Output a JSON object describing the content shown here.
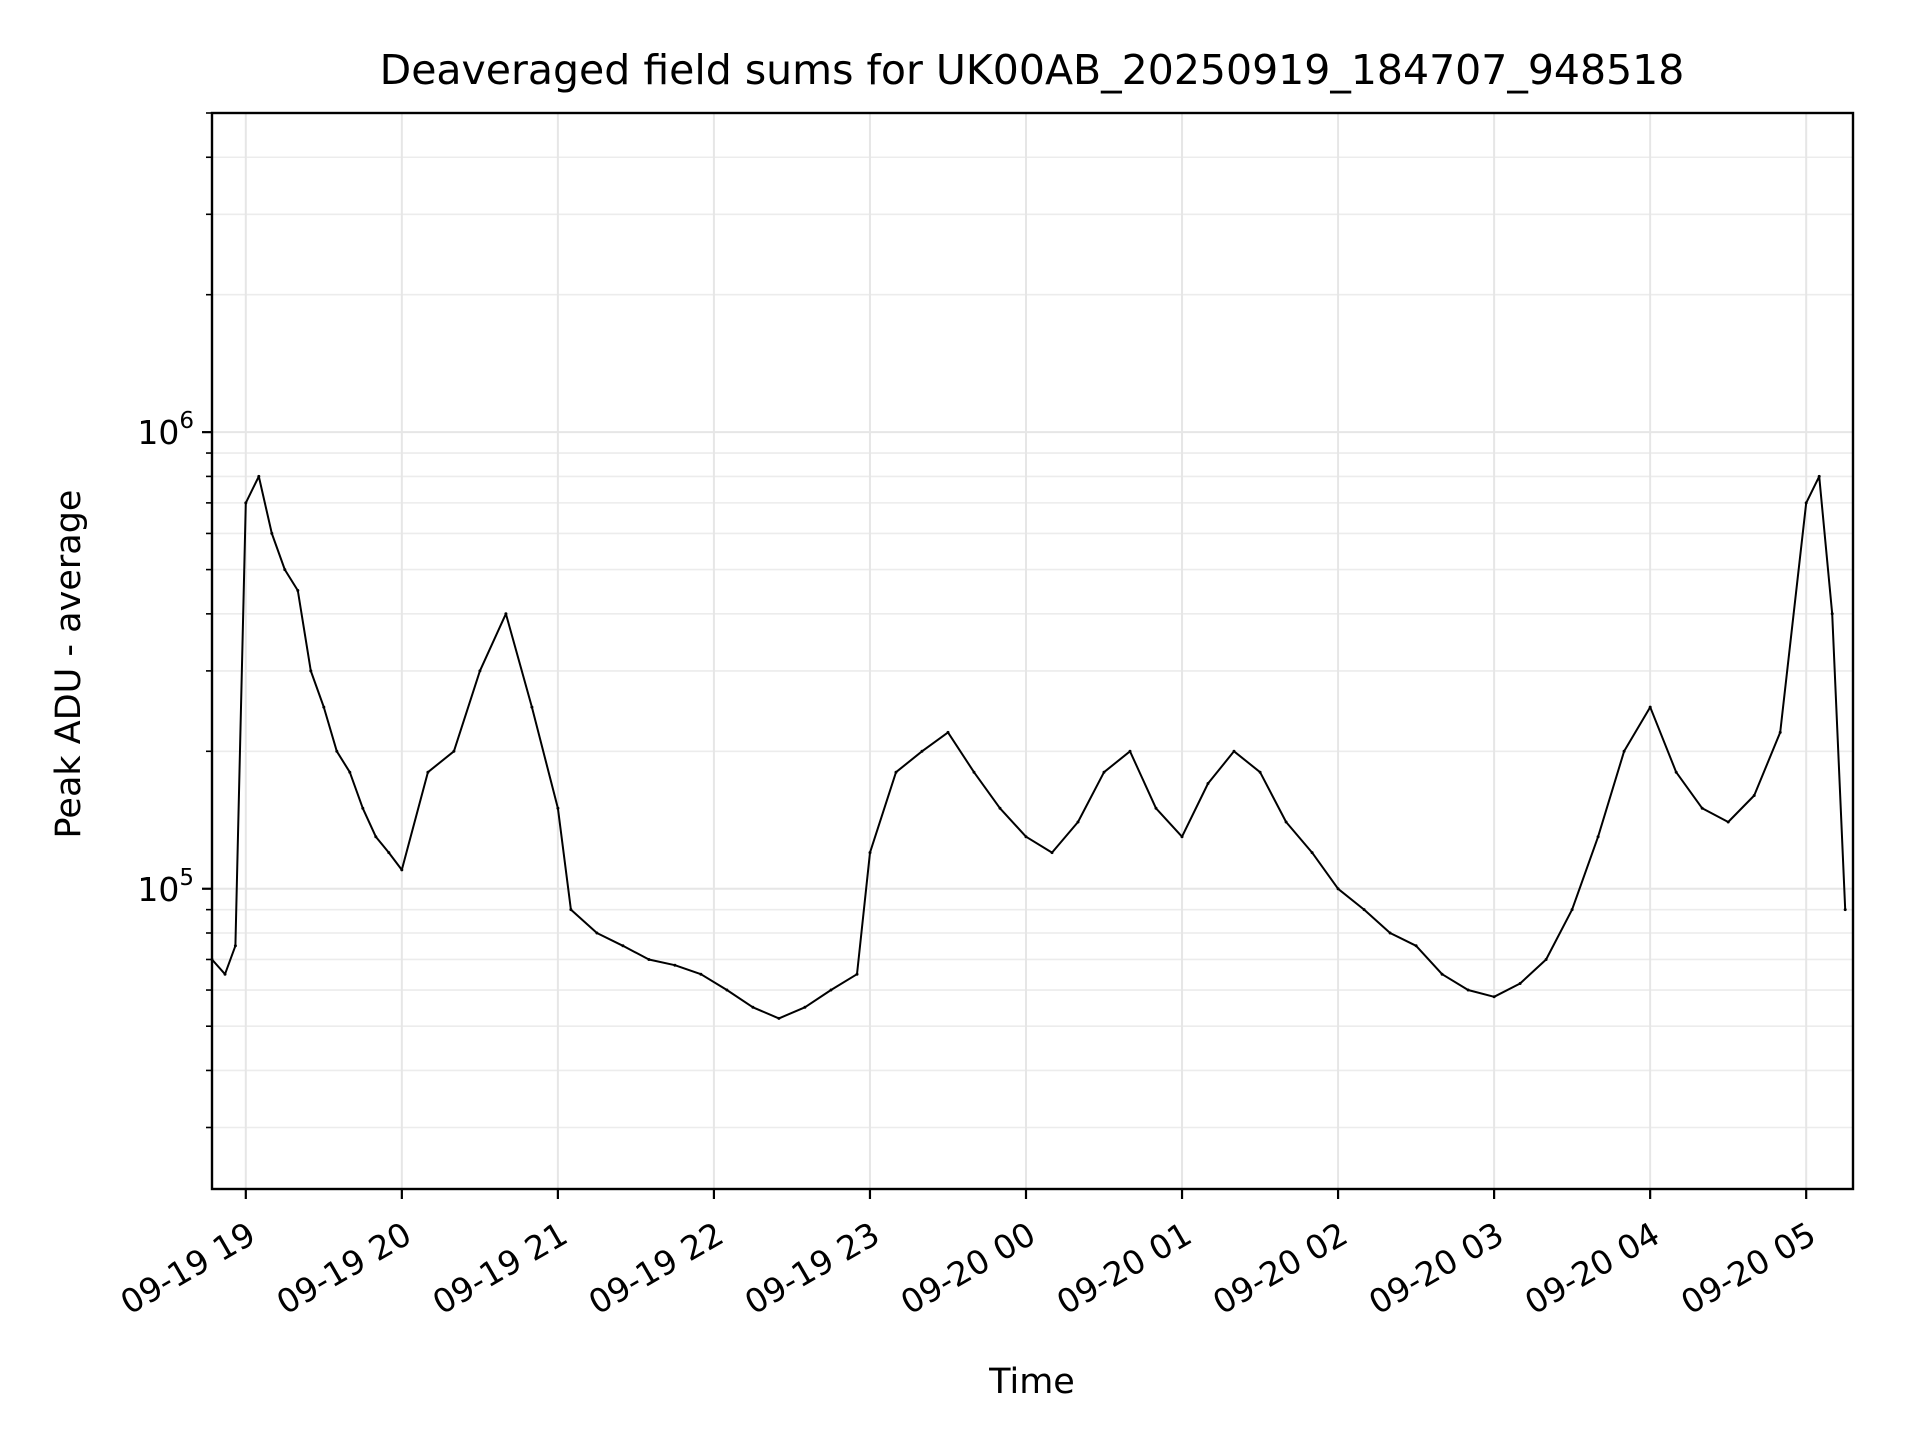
{
  "chart_data": {
    "type": "line",
    "title": "Deaveraged field sums for UK00AB_20250919_184707_948518",
    "xlabel": "Time",
    "ylabel": "Peak ADU - average",
    "yscale": "log",
    "ylim": [
      22000,
      5000000
    ],
    "xlim": [
      "2025-09-19 18:47",
      "2025-09-20 05:18"
    ],
    "grid": true,
    "series_color": "#000000",
    "x_tick_labels": [
      "09-19 19",
      "09-19 20",
      "09-19 21",
      "09-19 22",
      "09-19 23",
      "09-20 00",
      "09-20 01",
      "09-20 02",
      "09-20 03",
      "09-20 04",
      "09-20 05"
    ],
    "y_tick_labels": [
      {
        "value": 100000,
        "base": "10",
        "exp": "5"
      },
      {
        "value": 1000000,
        "base": "10",
        "exp": "6"
      }
    ],
    "series": [
      {
        "x": [
          "09-19 18:47",
          "09-19 18:52",
          "09-19 18:56",
          "09-19 19:00",
          "09-19 19:05",
          "09-19 19:10",
          "09-19 19:15",
          "09-19 19:20",
          "09-19 19:25",
          "09-19 19:30",
          "09-19 19:35",
          "09-19 19:40",
          "09-19 19:45",
          "09-19 19:50",
          "09-19 19:55",
          "09-19 20:00",
          "09-19 20:10",
          "09-19 20:20",
          "09-19 20:30",
          "09-19 20:40",
          "09-19 20:50",
          "09-19 21:00",
          "09-19 21:05",
          "09-19 21:15",
          "09-19 21:25",
          "09-19 21:35",
          "09-19 21:45",
          "09-19 21:55",
          "09-19 22:05",
          "09-19 22:15",
          "09-19 22:25",
          "09-19 22:35",
          "09-19 22:45",
          "09-19 22:55",
          "09-19 23:00",
          "09-19 23:10",
          "09-19 23:20",
          "09-19 23:30",
          "09-19 23:40",
          "09-19 23:50",
          "09-20 00:00",
          "09-20 00:10",
          "09-20 00:20",
          "09-20 00:30",
          "09-20 00:40",
          "09-20 00:50",
          "09-20 01:00",
          "09-20 01:10",
          "09-20 01:20",
          "09-20 01:30",
          "09-20 01:40",
          "09-20 01:50",
          "09-20 02:00",
          "09-20 02:10",
          "09-20 02:20",
          "09-20 02:30",
          "09-20 02:40",
          "09-20 02:50",
          "09-20 03:00",
          "09-20 03:10",
          "09-20 03:20",
          "09-20 03:30",
          "09-20 03:40",
          "09-20 03:50",
          "09-20 04:00",
          "09-20 04:10",
          "09-20 04:20",
          "09-20 04:30",
          "09-20 04:40",
          "09-20 04:50",
          "09-20 05:00",
          "09-20 05:05",
          "09-20 05:10",
          "09-20 05:15"
        ],
        "values": [
          70000,
          65000,
          75000,
          700000,
          800000,
          600000,
          500000,
          450000,
          300000,
          250000,
          200000,
          180000,
          150000,
          130000,
          120000,
          110000,
          180000,
          200000,
          300000,
          400000,
          250000,
          150000,
          90000,
          80000,
          75000,
          70000,
          68000,
          65000,
          60000,
          55000,
          52000,
          55000,
          60000,
          65000,
          120000,
          180000,
          200000,
          220000,
          180000,
          150000,
          130000,
          120000,
          140000,
          180000,
          200000,
          150000,
          130000,
          170000,
          200000,
          180000,
          140000,
          120000,
          100000,
          90000,
          80000,
          75000,
          65000,
          60000,
          58000,
          62000,
          70000,
          90000,
          130000,
          200000,
          250000,
          180000,
          150000,
          140000,
          160000,
          220000,
          700000,
          800000,
          400000,
          90000
        ]
      }
    ]
  }
}
